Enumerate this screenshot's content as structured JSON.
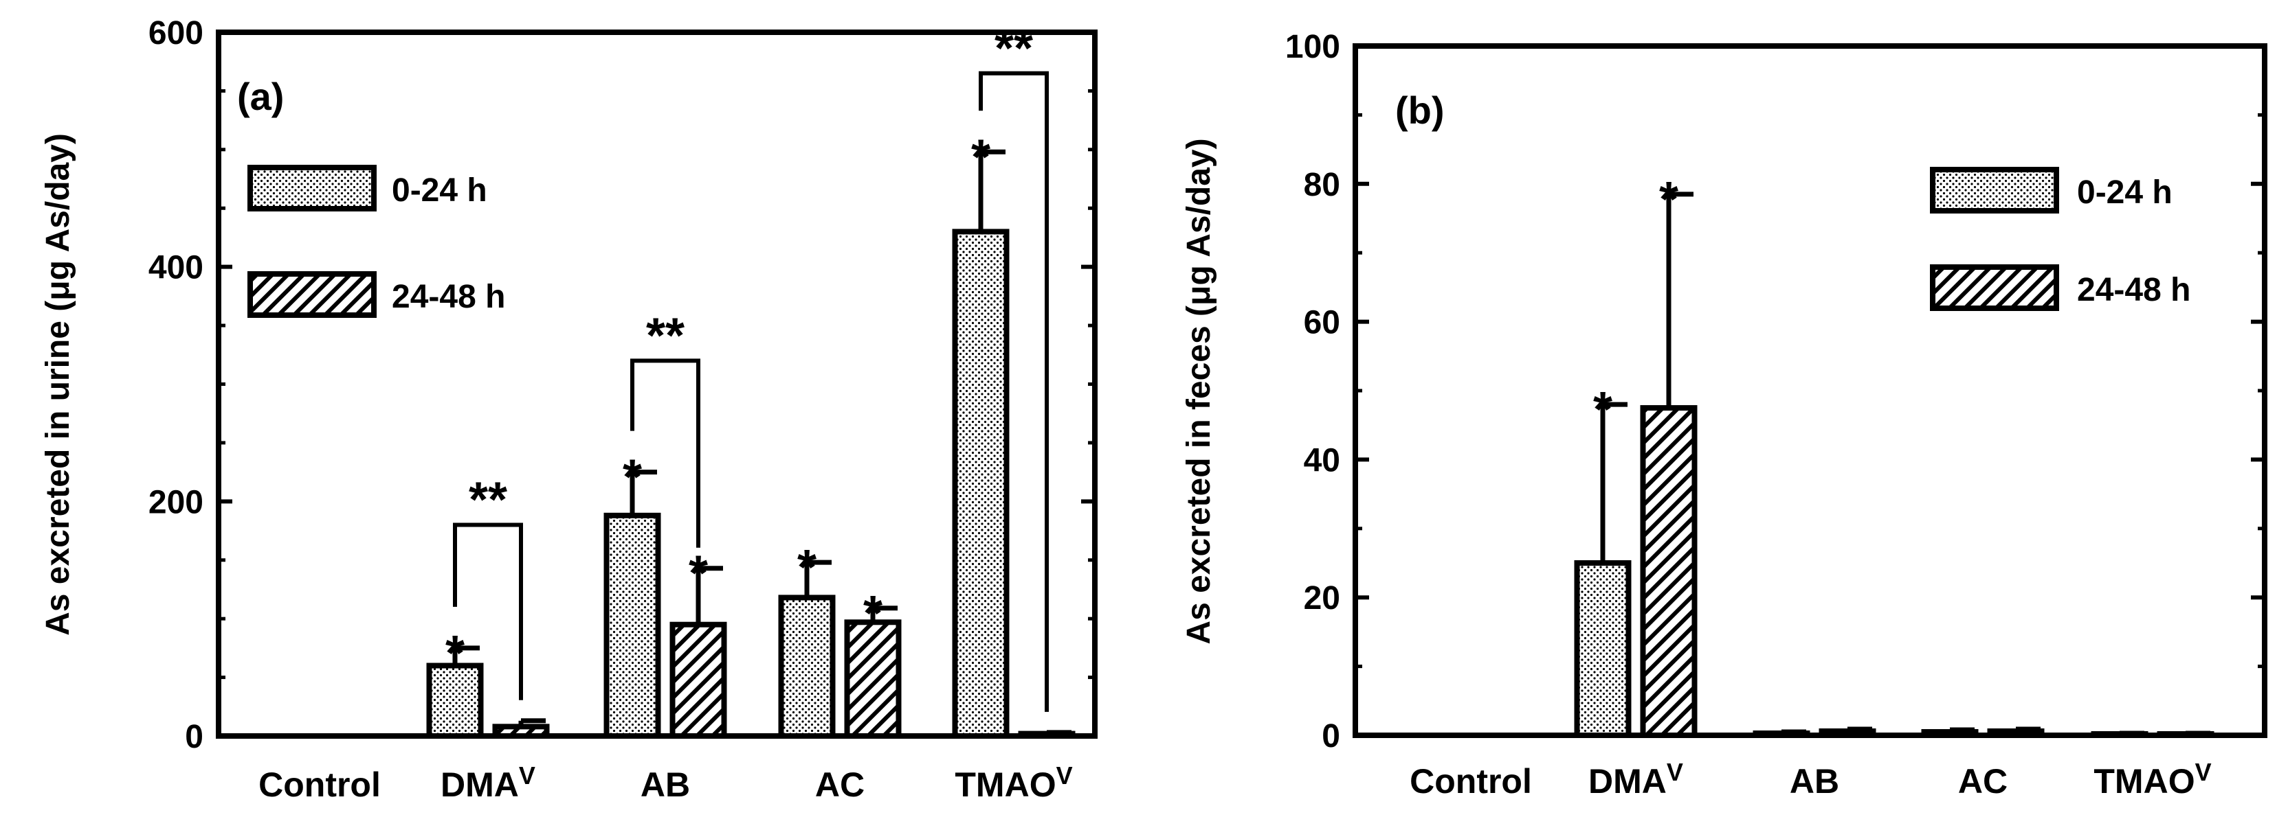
{
  "legend_entries": [
    {
      "label": "0-24 h",
      "pattern": "dots"
    },
    {
      "label": "24-48 h",
      "pattern": "hatch"
    }
  ],
  "colors": {
    "ink": "#000000",
    "fill": "#ffffff"
  },
  "chart_data": [
    {
      "type": "bar",
      "panel_label": "(a)",
      "title": "",
      "xlabel": "",
      "ylabel": "As excreted in urine (μg As/day)",
      "categories": [
        "Control",
        "DMAV",
        "AB",
        "AC",
        "TMAOV"
      ],
      "category_labels": [
        {
          "base": "Control",
          "sup": ""
        },
        {
          "base": "DMA",
          "sup": "V"
        },
        {
          "base": "AB",
          "sup": ""
        },
        {
          "base": "AC",
          "sup": ""
        },
        {
          "base": "TMAO",
          "sup": "V"
        }
      ],
      "ylim": [
        0,
        600
      ],
      "yticks": [
        0,
        200,
        400,
        600
      ],
      "ytick_labels": [
        "0",
        "200",
        "400",
        "600"
      ],
      "minor_step": 50,
      "legend_position": "top-left",
      "series": [
        {
          "name": "0-24 h",
          "pattern": "dots",
          "values": [
            0,
            60,
            188,
            118,
            430
          ],
          "errors": [
            0,
            15,
            37,
            30,
            68
          ],
          "stars": [
            "",
            "*",
            "*",
            "*",
            "*"
          ]
        },
        {
          "name": "24-48 h",
          "pattern": "hatch",
          "values": [
            0,
            8,
            95,
            97,
            2
          ],
          "errors": [
            0,
            5,
            48,
            12,
            1
          ],
          "stars": [
            "",
            "",
            "*",
            "*",
            ""
          ]
        }
      ],
      "comparisons": [
        {
          "category": 1,
          "top": 180,
          "label": "**"
        },
        {
          "category": 2,
          "top": 320,
          "label": "**"
        },
        {
          "category": 4,
          "top": 565,
          "label": "**"
        }
      ]
    },
    {
      "type": "bar",
      "panel_label": "(b)",
      "title": "",
      "xlabel": "",
      "ylabel": "As excreted in feces (μg As/day)",
      "categories": [
        "Control",
        "DMAV",
        "AB",
        "AC",
        "TMAOV"
      ],
      "category_labels": [
        {
          "base": "Control",
          "sup": ""
        },
        {
          "base": "DMA",
          "sup": "V"
        },
        {
          "base": "AB",
          "sup": ""
        },
        {
          "base": "AC",
          "sup": ""
        },
        {
          "base": "TMAO",
          "sup": "V"
        }
      ],
      "ylim": [
        0,
        100
      ],
      "yticks": [
        0,
        20,
        40,
        60,
        80,
        100
      ],
      "ytick_labels": [
        "0",
        "20",
        "40",
        "60",
        "80",
        "100"
      ],
      "minor_step": 10,
      "legend_position": "top-right",
      "series": [
        {
          "name": "0-24 h",
          "pattern": "dots",
          "values": [
            0,
            25,
            0.3,
            0.5,
            0.2
          ],
          "errors": [
            0,
            23,
            0.2,
            0.3,
            0.1
          ],
          "stars": [
            "",
            "*",
            "",
            "",
            ""
          ]
        },
        {
          "name": "24-48 h",
          "pattern": "hatch",
          "values": [
            0,
            47.5,
            0.6,
            0.6,
            0.2
          ],
          "errors": [
            0,
            31,
            0.3,
            0.3,
            0.1
          ],
          "stars": [
            "",
            "*",
            "",
            "",
            ""
          ]
        }
      ],
      "comparisons": []
    }
  ]
}
